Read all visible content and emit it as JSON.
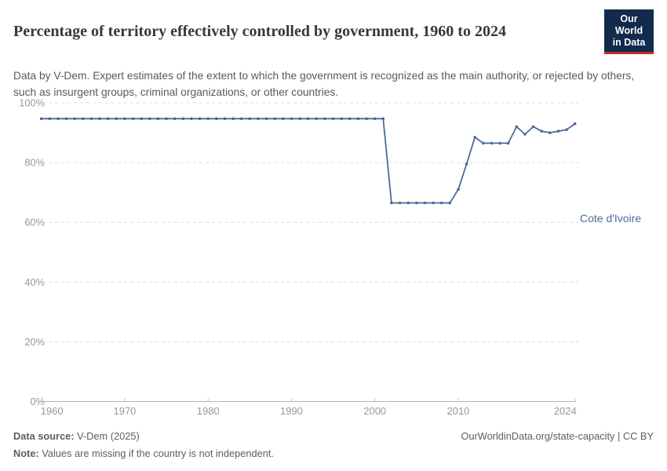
{
  "header": {
    "title": "Percentage of territory effectively controlled by government, 1960 to 2024",
    "subtitle": "Data by V-Dem. Expert estimates of the extent to which the government is recognized as the main authority, or rejected by others, such as insurgent groups, criminal organizations, or other countries.",
    "logo": {
      "line1": "Our World",
      "line2": "in Data"
    }
  },
  "chart_data": {
    "type": "line",
    "title": "Percentage of territory effectively controlled by government, 1960 to 2024",
    "xlabel": "",
    "ylabel": "",
    "xlim": [
      1960,
      2024
    ],
    "ylim": [
      0,
      100
    ],
    "grid": "horizontal-dashed",
    "legend_position": "end-of-line-label",
    "x": [
      1960,
      1961,
      1962,
      1963,
      1964,
      1965,
      1966,
      1967,
      1968,
      1969,
      1970,
      1971,
      1972,
      1973,
      1974,
      1975,
      1976,
      1977,
      1978,
      1979,
      1980,
      1981,
      1982,
      1983,
      1984,
      1985,
      1986,
      1987,
      1988,
      1989,
      1990,
      1991,
      1992,
      1993,
      1994,
      1995,
      1996,
      1997,
      1998,
      1999,
      2000,
      2001,
      2002,
      2003,
      2004,
      2005,
      2006,
      2007,
      2008,
      2009,
      2010,
      2011,
      2012,
      2013,
      2014,
      2015,
      2016,
      2017,
      2018,
      2019,
      2020,
      2021,
      2022,
      2023,
      2024
    ],
    "series": [
      {
        "name": "Cote d'Ivoire",
        "color": "#4C6A9C",
        "values": [
          94.7,
          94.7,
          94.7,
          94.7,
          94.7,
          94.7,
          94.7,
          94.7,
          94.7,
          94.7,
          94.7,
          94.7,
          94.7,
          94.7,
          94.7,
          94.7,
          94.7,
          94.7,
          94.7,
          94.7,
          94.7,
          94.7,
          94.7,
          94.7,
          94.7,
          94.7,
          94.7,
          94.7,
          94.7,
          94.7,
          94.7,
          94.7,
          94.7,
          94.7,
          94.7,
          94.7,
          94.7,
          94.7,
          94.7,
          94.7,
          94.7,
          94.7,
          66.5,
          66.5,
          66.5,
          66.5,
          66.5,
          66.5,
          66.5,
          66.5,
          71,
          79.5,
          88.5,
          86.5,
          86.5,
          86.5,
          86.5,
          92,
          89.5,
          92,
          90.5,
          90,
          90.5,
          91,
          93
        ]
      }
    ],
    "yticks": [
      {
        "value": 0,
        "label": "0%"
      },
      {
        "value": 20,
        "label": "20%"
      },
      {
        "value": 40,
        "label": "40%"
      },
      {
        "value": 60,
        "label": "60%"
      },
      {
        "value": 80,
        "label": "80%"
      },
      {
        "value": 100,
        "label": "100%"
      }
    ],
    "xticks": [
      {
        "value": 1960,
        "label": "1960"
      },
      {
        "value": 1970,
        "label": "1970"
      },
      {
        "value": 1980,
        "label": "1980"
      },
      {
        "value": 1990,
        "label": "1990"
      },
      {
        "value": 2000,
        "label": "2000"
      },
      {
        "value": 2010,
        "label": "2010"
      },
      {
        "value": 2024,
        "label": "2024"
      }
    ]
  },
  "colors": {
    "series_blue": "#4C6A9C",
    "logo_navy": "#112B4E",
    "logo_red": "#C62A29",
    "gridline": "#dcdcdc",
    "axis_line": "#b5b5b5",
    "tick_label": "#989898"
  },
  "footer": {
    "source_label": "Data source:",
    "source_text": " V-Dem (2025)",
    "note_label": "Note:",
    "note_text": " Values are missing if the country is not independent.",
    "credit": "OurWorldinData.org/state-capacity | CC BY"
  }
}
